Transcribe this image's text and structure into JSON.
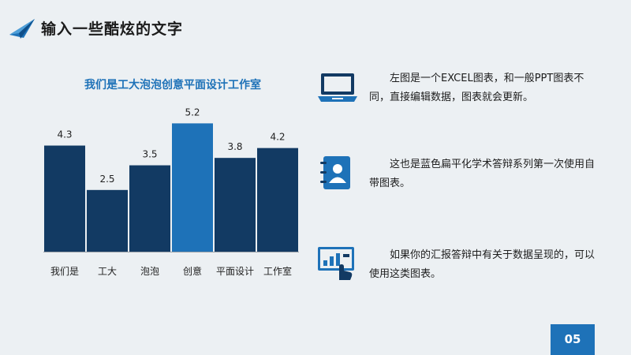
{
  "header": {
    "title": "输入一些酷炫的文字"
  },
  "chart_data": {
    "type": "bar",
    "title": "我们是工大泡泡创意平面设计工作室",
    "categories": [
      "我们是",
      "工大",
      "泡泡",
      "创意",
      "平面设计",
      "工作室"
    ],
    "values": [
      4.3,
      2.5,
      3.5,
      5.2,
      3.8,
      4.2
    ],
    "ylim": [
      0,
      5.5
    ],
    "xlabel": "",
    "ylabel": "",
    "grid": false,
    "colors": {
      "default": "#123a63",
      "highlight": "#1e72b8",
      "baseline": "#9aa0a6"
    },
    "highlight_category": "创意"
  },
  "info": [
    {
      "icon": "laptop-icon",
      "text": "左图是一个EXCEL图表，和一般PPT图表不同，直接编辑数据，图表就会更新。"
    },
    {
      "icon": "contact-book-icon",
      "text": "这也是蓝色扁平化学术答辩系列第一次使用自带图表。"
    },
    {
      "icon": "touch-screen-chart-icon",
      "text": "如果你的汇报答辩中有关于数据呈现的，可以使用这类图表。"
    }
  ],
  "page_number": "05",
  "accent_color": "#1e72b8"
}
